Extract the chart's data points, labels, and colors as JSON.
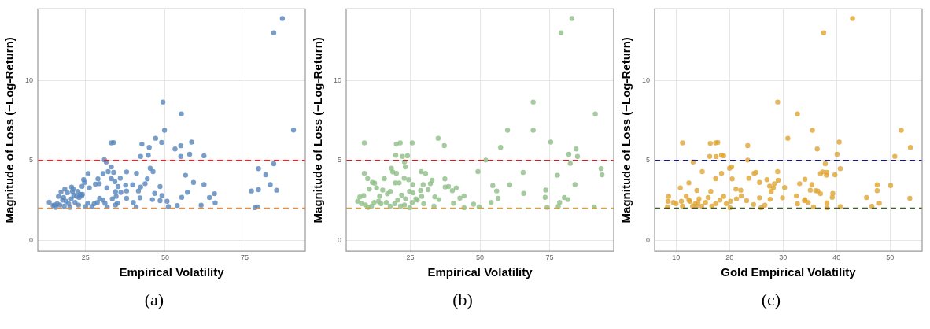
{
  "chart_data": [
    {
      "type": "scatter",
      "xlabel": "Empirical Volatility",
      "ylabel": "Magnitude of Loss (−Log-Return)",
      "xlim": [
        10,
        94
      ],
      "ylim": [
        -0.7,
        14.5
      ],
      "xticks": [
        25,
        50,
        75
      ],
      "yticks": [
        0,
        5,
        10
      ],
      "grid": true,
      "marker": "circle",
      "annotations": [
        "(a)"
      ],
      "ref_lines": [
        {
          "axis": "y",
          "value": 5,
          "color": "#ff1a1a",
          "line_style": "dashed"
        },
        {
          "axis": "y",
          "value": 2,
          "color": "#f28a30",
          "line_style": "dashed"
        }
      ],
      "series": [
        {
          "color": "#5a87bd",
          "x": [
            86.8,
            84.1,
            90.3,
            49.3,
            55.1,
            49.8,
            47.0,
            48.9,
            58.3,
            42.7,
            45.0,
            53.1,
            54.9,
            57.7,
            54.9,
            62.2,
            44.7,
            42.3,
            33.1,
            33.8,
            30.9,
            31.5,
            33.1,
            45.3,
            46.2,
            37.9,
            41.0,
            25.8,
            30.5,
            32.1,
            33.8,
            56.4,
            44.4,
            33.1,
            35.9,
            24.4,
            24.7,
            34.2,
            28.9,
            28.1,
            29.3,
            37.6,
            39.8,
            43.7,
            58.9,
            62.2,
            79.3,
            81.6,
            84.1,
            83.0,
            85.0,
            77.1,
            79.3,
            79.0,
            78.2,
            35.2,
            31.7,
            26.2,
            23.9,
            18.5,
            20.6,
            48.4,
            41.6,
            42.3,
            34.4,
            36.1,
            37.9,
            57.0,
            49.0,
            46.7,
            65.5,
            63.9,
            55.2,
            42.1,
            37.9,
            34.6,
            33.4,
            46.0,
            48.4,
            50.6,
            40.0,
            35.0,
            65.7,
            29.4,
            30.5,
            31.1,
            53.8,
            61.3,
            51.0,
            40.9,
            34.4,
            31.8,
            27.0,
            28.7,
            27.7,
            25.7,
            25.0,
            13.6,
            14.8,
            15.6,
            16.5,
            16.9,
            17.8,
            18.3,
            19.3,
            19.7,
            20.1,
            20.5,
            20.9,
            21.3,
            21.7,
            22.2,
            22.6,
            23.0,
            23.4,
            23.8,
            22.8,
            24.0,
            17.3,
            16.1,
            15.2,
            18.9,
            21.1,
            18.1
          ],
          "values": [
            13.9,
            13.0,
            6.9,
            8.66,
            7.92,
            6.89,
            6.39,
            6.13,
            6.15,
            6.02,
            5.82,
            5.72,
            5.92,
            5.39,
            5.25,
            5.29,
            5.32,
            5.25,
            6.1,
            6.12,
            5.04,
            4.9,
            4.59,
            4.51,
            4.3,
            4.28,
            4.19,
            4.18,
            4.18,
            4.3,
            4.25,
            4.07,
            3.84,
            3.85,
            3.88,
            3.79,
            3.62,
            3.67,
            3.84,
            3.51,
            3.54,
            3.45,
            3.47,
            3.54,
            3.62,
            3.48,
            4.48,
            4.1,
            4.79,
            3.48,
            3.13,
            3.08,
            3.16,
            2.08,
            2.03,
            3.36,
            3.28,
            3.28,
            3.37,
            3.2,
            3.33,
            3.36,
            3.08,
            3.33,
            3.04,
            2.99,
            3.08,
            3.0,
            2.79,
            2.93,
            2.91,
            2.67,
            2.68,
            2.65,
            2.62,
            2.74,
            2.59,
            2.54,
            2.47,
            2.43,
            2.36,
            2.31,
            2.34,
            2.62,
            2.5,
            2.31,
            2.17,
            2.19,
            2.1,
            2.08,
            2.2,
            2.08,
            2.1,
            2.36,
            2.28,
            2.31,
            2.1,
            2.37,
            2.17,
            2.05,
            2.74,
            2.2,
            2.51,
            2.13,
            2.97,
            2.28,
            2.05,
            2.59,
            3.05,
            2.82,
            2.36,
            2.74,
            3.05,
            2.67,
            2.87,
            2.77,
            2.2,
            2.87,
            3.02,
            2.28,
            2.2,
            2.43,
            3.2,
            2.67
          ]
        }
      ]
    },
    {
      "type": "scatter",
      "xlabel": "Empirical Volatility",
      "ylabel": "Magnitude of Loss (−Log-Return)",
      "xlim": [
        2,
        98
      ],
      "ylim": [
        -0.7,
        14.5
      ],
      "xticks": [
        25,
        50,
        75
      ],
      "yticks": [
        0,
        5,
        10
      ],
      "grid": true,
      "marker": "circle",
      "annotations": [
        "(b)"
      ],
      "ref_lines": [
        {
          "axis": "y",
          "value": 5,
          "color": "#cc1f1f",
          "line_style": "dashed"
        },
        {
          "axis": "y",
          "value": 2,
          "color": "#e0a030",
          "line_style": "dashed"
        }
      ],
      "series": [
        {
          "color": "#8fbf88",
          "x": [
            83.0,
            79.1,
            69.1,
            91.4,
            59.9,
            69.1,
            75.4,
            57.4,
            84.5,
            81.9,
            85.0,
            82.4,
            52.1,
            49.3,
            65.5,
            77.8,
            93.5,
            93.8,
            84.1,
            60.7,
            54.6,
            56.0,
            73.6,
            65.7,
            56.5,
            73.4,
            80.3,
            81.6,
            78.6,
            78.1,
            74.1,
            91.0,
            54.0,
            49.7,
            47.7,
            44.3,
            44.3,
            42.8,
            41.5,
            40.1,
            40.5,
            38.7,
            37.5,
            37.4,
            37.2,
            35.0,
            35.3,
            33.8,
            33.5,
            32.8,
            32.2,
            31.4,
            28.7,
            28.9,
            30.5,
            29.6,
            29.8,
            25.7,
            24.0,
            22.2,
            23.2,
            22.9,
            21.4,
            20.0,
            19.8,
            20.0,
            18.2,
            18.7,
            19.6,
            21.0,
            22.8,
            24.4,
            25.9,
            24.7,
            26.0,
            27.0,
            25.7,
            24.8,
            23.3,
            21.9,
            20.5,
            19.4,
            17.8,
            16.8,
            15.7,
            15.1,
            14.0,
            13.6,
            12.9,
            12.2,
            11.4,
            10.3,
            9.7,
            8.5,
            8.5,
            8.3,
            6.9,
            6.1,
            7.5,
            8.9,
            9.9,
            11.1,
            12.0,
            14.5,
            16.4,
            17.8,
            21.5,
            22.9,
            27.5,
            29.1
          ],
          "values": [
            13.9,
            13.0,
            8.66,
            7.92,
            6.89,
            6.89,
            6.15,
            5.82,
            5.72,
            5.39,
            5.25,
            4.81,
            5.02,
            4.3,
            4.25,
            4.07,
            4.48,
            4.1,
            3.48,
            3.47,
            3.42,
            3.08,
            3.14,
            2.93,
            2.62,
            2.68,
            2.67,
            2.54,
            2.36,
            2.11,
            2.05,
            2.08,
            2.36,
            2.08,
            2.25,
            2.03,
            2.77,
            2.63,
            3.28,
            3.1,
            2.31,
            3.36,
            3.33,
            3.84,
            5.93,
            6.39,
            2.54,
            2.71,
            2.13,
            3.76,
            3.54,
            3.16,
            3.11,
            4.3,
            4.19,
            3.48,
            2.28,
            6.1,
            5.29,
            5.25,
            4.59,
            4.9,
            6.1,
            6.02,
            5.32,
            4.19,
            4.51,
            4.28,
            3.59,
            3.59,
            3.88,
            3.79,
            3.48,
            3.05,
            2.96,
            2.59,
            2.36,
            2.03,
            2.59,
            2.82,
            2.51,
            2.28,
            3.05,
            2.9,
            3.85,
            3.14,
            2.74,
            2.43,
            3.28,
            3.57,
            3.62,
            3.2,
            3.85,
            4.19,
            6.1,
            2.79,
            2.71,
            2.43,
            2.28,
            2.2,
            2.05,
            2.13,
            2.36,
            2.28,
            2.36,
            2.13,
            2.13,
            2.2,
            2.51,
            2.74
          ]
        }
      ]
    },
    {
      "type": "scatter",
      "xlabel": "Gold Empirical Volatility",
      "ylabel": "Magnitude of Loss (−Log-Return)",
      "xlim": [
        6,
        56
      ],
      "ylim": [
        -0.7,
        14.5
      ],
      "xticks": [
        10,
        20,
        30,
        40,
        50
      ],
      "yticks": [
        0,
        5,
        10
      ],
      "grid": true,
      "marker": "circle",
      "annotations": [
        "(c)"
      ],
      "ref_lines": [
        {
          "axis": "y",
          "value": 5,
          "color": "#1a1a80",
          "line_style": "dashed"
        },
        {
          "axis": "y",
          "value": 2,
          "color": "#3d5e2a",
          "line_style": "dashed"
        }
      ],
      "series": [
        {
          "color": "#e0a536",
          "x": [
            43.0,
            37.6,
            29.0,
            32.7,
            35.5,
            52.1,
            30.9,
            40.5,
            11.2,
            17.4,
            17.8,
            16.4,
            23.4,
            36.4,
            53.8,
            40.1,
            50.9,
            16.3,
            17.5,
            18.5,
            18.9,
            23.4,
            13.2,
            37.9,
            20.0,
            20.4,
            40.7,
            14.9,
            29.0,
            24.6,
            24.9,
            18.5,
            37.0,
            37.4,
            38.2,
            38.1,
            39.7,
            20.5,
            23.6,
            17.4,
            27.0,
            29.1,
            34.1,
            12.4,
            25.6,
            28.4,
            33.1,
            35.4,
            47.6,
            50.1,
            27.5,
            30.3,
            28.2,
            10.8,
            35.1,
            36.1,
            36.5,
            47.6,
            37.0,
            39.3,
            27.8,
            21.2,
            22.1,
            16.5,
            13.9,
            32.5,
            39.2,
            29.9,
            45.6,
            53.7,
            25.6,
            27.6,
            34.1,
            34.0,
            34.7,
            32.7,
            38.2,
            48.0,
            46.6,
            40.7,
            38.2,
            35.7,
            26.6,
            25.9,
            24.5,
            23.2,
            22.2,
            21.3,
            20.2,
            20.1,
            19.4,
            18.9,
            18.2,
            17.4,
            16.7,
            16.0,
            15.5,
            14.8,
            14.3,
            13.6,
            13.1,
            12.6,
            11.9,
            11.2,
            11.0,
            10.0,
            9.5,
            8.6,
            8.5,
            8.4,
            12.4,
            13.8,
            14.1
          ],
          "values": [
            13.9,
            13.0,
            8.66,
            7.92,
            6.89,
            6.89,
            6.39,
            6.15,
            6.1,
            6.1,
            6.13,
            6.07,
            5.93,
            5.72,
            5.82,
            5.39,
            5.25,
            5.25,
            5.24,
            5.33,
            5.29,
            5.02,
            4.9,
            4.79,
            4.51,
            4.59,
            4.48,
            4.3,
            4.3,
            4.19,
            4.25,
            4.19,
            4.18,
            4.28,
            4.25,
            4.07,
            4.1,
            3.84,
            3.88,
            3.85,
            3.79,
            3.76,
            3.82,
            3.59,
            3.62,
            3.54,
            3.54,
            3.48,
            3.47,
            3.42,
            3.39,
            3.3,
            3.28,
            3.28,
            3.13,
            3.1,
            3.08,
            3.1,
            2.91,
            2.93,
            3.05,
            3.2,
            3.13,
            3.05,
            3.11,
            2.77,
            2.68,
            2.65,
            2.67,
            2.62,
            2.65,
            2.56,
            2.54,
            2.47,
            2.36,
            2.27,
            2.34,
            2.31,
            2.11,
            2.1,
            2.03,
            2.08,
            2.19,
            2.03,
            2.23,
            2.47,
            2.77,
            2.59,
            2.43,
            2.03,
            2.28,
            2.74,
            2.51,
            2.28,
            2.13,
            2.67,
            2.36,
            2.13,
            2.59,
            2.28,
            2.13,
            2.43,
            2.74,
            2.13,
            2.43,
            2.28,
            2.36,
            2.74,
            2.43,
            2.08,
            2.51,
            2.13,
            2.36
          ]
        }
      ]
    }
  ]
}
